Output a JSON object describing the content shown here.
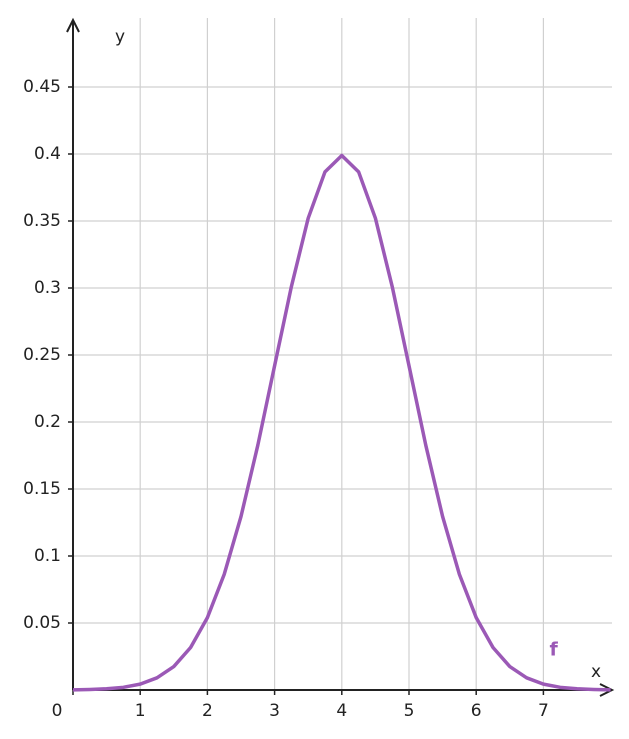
{
  "chart_data": {
    "type": "line",
    "x_label": "x",
    "y_label": "y",
    "x": [
      0,
      0.25,
      0.5,
      0.75,
      1,
      1.25,
      1.5,
      1.75,
      2,
      2.25,
      2.5,
      2.75,
      3,
      3.25,
      3.5,
      3.75,
      4,
      4.25,
      4.5,
      4.75,
      5,
      5.25,
      5.5,
      5.75,
      6,
      6.25,
      6.5,
      6.75,
      7,
      7.25,
      7.5,
      7.75,
      8
    ],
    "series": [
      {
        "name": "f",
        "color": "#9b59b6",
        "values": [
          0.0001,
          0.0004,
          0.0009,
          0.002,
          0.0044,
          0.0091,
          0.0175,
          0.0317,
          0.054,
          0.0863,
          0.1295,
          0.1826,
          0.242,
          0.3011,
          0.3521,
          0.3867,
          0.3989,
          0.3867,
          0.3521,
          0.3011,
          0.242,
          0.1826,
          0.1295,
          0.0863,
          0.054,
          0.0317,
          0.0175,
          0.0091,
          0.0044,
          0.002,
          0.0009,
          0.0004,
          0.0001
        ]
      }
    ],
    "xlim": [
      0,
      8
    ],
    "ylim": [
      0,
      0.5
    ],
    "xticks": [
      0,
      1,
      2,
      3,
      4,
      5,
      6,
      7
    ],
    "yticks": [
      0.05,
      0.1,
      0.15,
      0.2,
      0.25,
      0.3,
      0.35,
      0.4,
      0.45
    ],
    "grid": true
  }
}
